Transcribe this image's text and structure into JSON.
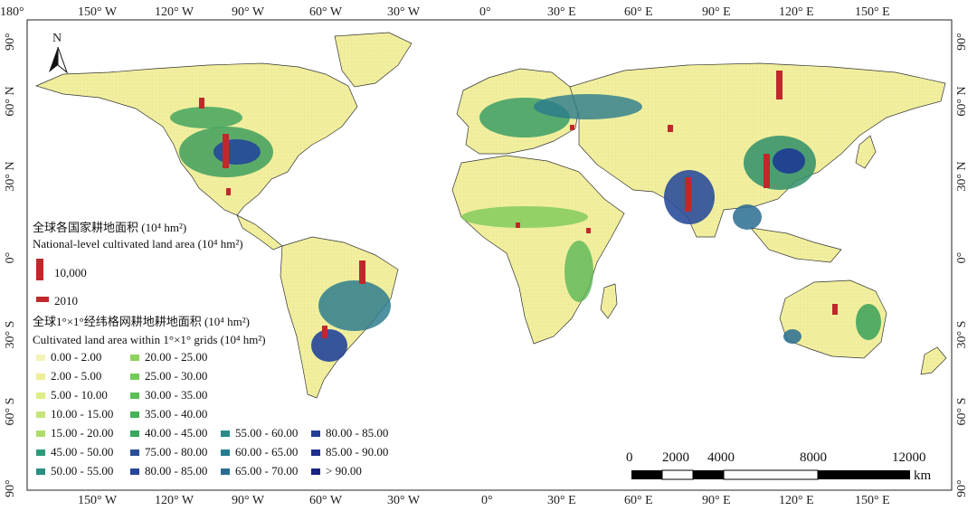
{
  "frame": {
    "top_labels": [
      "180°",
      "150° W",
      "120° W",
      "90° W",
      "60° W",
      "30° W",
      "0°",
      "30° E",
      "60° E",
      "90° E",
      "120° E",
      "150° E"
    ],
    "bottom_labels": [
      "150° W",
      "120° W",
      "90° W",
      "60° W",
      "30° W",
      "0°",
      "30° E",
      "60° E",
      "90° E",
      "120° E",
      "150° E"
    ],
    "left_labels": [
      "90°",
      "60° N",
      "30° N",
      "0°",
      "30° S",
      "60° S",
      "90°"
    ],
    "right_labels": [
      "90°",
      "60° N",
      "30° N",
      "0°",
      "30° S",
      "60° S",
      "90°"
    ]
  },
  "north_arrow": {
    "label": "N"
  },
  "colors": {
    "ocean": "#ffffff",
    "land_low": "#f2f0a0",
    "land_mid": "#a8d85a",
    "land_high": "#2e9a5a",
    "land_dense": "#1f4f9a",
    "bar": "#c0282b",
    "border": "#333333"
  },
  "legend": {
    "national_title_cn": "全球各国家耕地面积 (10⁴ hm²)",
    "national_title_en": "National-level cultivated land area (10⁴ hm²)",
    "bar_value_label": "10,000",
    "bar_small_label": "2010",
    "grid_title_cn": "全球1°×1°经纬格网耕地耕地面积 (10⁴ hm²)",
    "grid_title_en": "Cultivated land area within 1°×1° grids (10⁴ hm²)",
    "classes": [
      {
        "label": "0.00 - 2.00",
        "color": "#f4f3b8"
      },
      {
        "label": "2.00 - 5.00",
        "color": "#eeee9a"
      },
      {
        "label": "5.00 - 10.00",
        "color": "#dfec88"
      },
      {
        "label": "10.00 - 15.00",
        "color": "#c6e47a"
      },
      {
        "label": "15.00 - 20.00",
        "color": "#aedc6a"
      },
      {
        "label": "45.00 - 50.00",
        "color": "#2f9a7a"
      },
      {
        "label": "50.00 - 55.00",
        "color": "#2a8f82"
      },
      {
        "label": "20.00 - 25.00",
        "color": "#8fd35e"
      },
      {
        "label": "25.00 - 30.00",
        "color": "#74c957"
      },
      {
        "label": "30.00 - 35.00",
        "color": "#5abf55"
      },
      {
        "label": "35.00 - 40.00",
        "color": "#46b358"
      },
      {
        "label": "40.00 - 45.00",
        "color": "#38a65e"
      },
      {
        "label": "75.00 - 80.00",
        "color": "#2a4f96"
      },
      {
        "label": "80.00 - 85.00",
        "color": "#27459a"
      },
      {
        "label": "55.00 - 60.00",
        "color": "#2a8a8a"
      },
      {
        "label": "60.00 - 65.00",
        "color": "#277d8f"
      },
      {
        "label": "65.00 - 70.00",
        "color": "#2a6d92"
      },
      {
        "label": "80.00 - 85.00",
        "color": "#253d97"
      },
      {
        "label": "85.00 - 90.00",
        "color": "#1f2f8e"
      },
      {
        "label": "> 90.00",
        "color": "#1a2384"
      }
    ]
  },
  "scale_bar": {
    "labels": [
      "0",
      "2000",
      "4000",
      "8000",
      "12000"
    ],
    "unit": "km"
  }
}
